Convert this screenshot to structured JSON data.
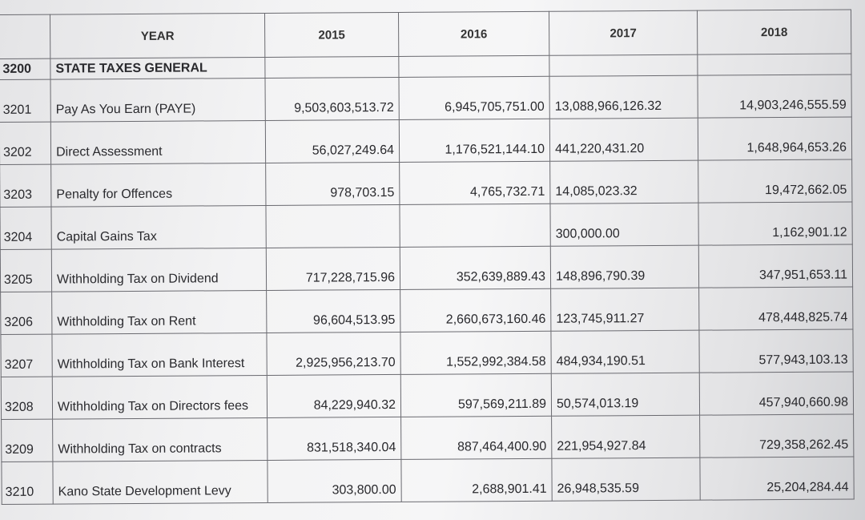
{
  "header": {
    "year_label": "YEAR",
    "years": [
      "2015",
      "2016",
      "2017",
      "2018"
    ]
  },
  "section": {
    "code": "3200",
    "label": "STATE TAXES GENERAL"
  },
  "rows": [
    {
      "code": "3201",
      "label": "Pay As You Earn (PAYE)",
      "values": [
        "9,503,603,513.72",
        "6,945,705,751.00",
        "13,088,966,126.32",
        "14,903,246,555.59"
      ]
    },
    {
      "code": "3202",
      "label": "Direct Assessment",
      "values": [
        "56,027,249.64",
        "1,176,521,144.10",
        "441,220,431.20",
        "1,648,964,653.26"
      ]
    },
    {
      "code": "3203",
      "label": "Penalty for Offences",
      "values": [
        "978,703.15",
        "4,765,732.71",
        "14,085,023.32",
        "19,472,662.05"
      ]
    },
    {
      "code": "3204",
      "label": "Capital Gains Tax",
      "values": [
        "",
        "",
        "300,000.00",
        "1,162,901.12"
      ]
    },
    {
      "code": "3205",
      "label": "Withholding Tax on Dividend",
      "values": [
        "717,228,715.96",
        "352,639,889.43",
        "148,896,790.39",
        "347,951,653.11"
      ]
    },
    {
      "code": "3206",
      "label": "Withholding Tax on Rent",
      "values": [
        "96,604,513.95",
        "2,660,673,160.46",
        "123,745,911.27",
        "478,448,825.74"
      ]
    },
    {
      "code": "3207",
      "label": "Withholding Tax on Bank Interest",
      "values": [
        "2,925,956,213.70",
        "1,552,992,384.58",
        "484,934,190.51",
        "577,943,103.13"
      ]
    },
    {
      "code": "3208",
      "label": "Withholding Tax on Directors fees",
      "values": [
        "84,229,940.32",
        "597,569,211.89",
        "50,574,013.19",
        "457,940,660.98"
      ]
    },
    {
      "code": "3209",
      "label": "Withholding Tax on contracts",
      "values": [
        "831,518,340.04",
        "887,464,400.90",
        "221,954,927.84",
        "729,358,262.45"
      ]
    },
    {
      "code": "3210",
      "label": "Kano State Development Levy",
      "values": [
        "303,800.00",
        "2,688,901.41",
        "26,948,535.59",
        "25,204,284.44"
      ]
    }
  ]
}
